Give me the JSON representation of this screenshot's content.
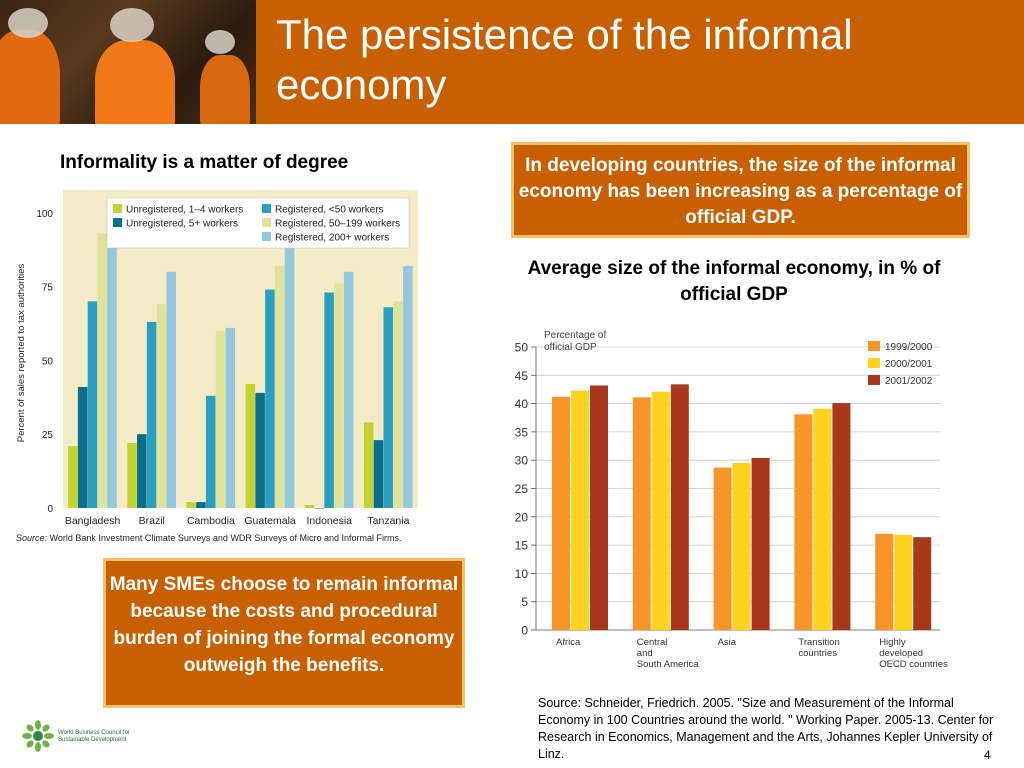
{
  "slide": {
    "title": "The persistence of the informal economy",
    "page_number": "4"
  },
  "left_panel": {
    "heading": "Informality is a matter of degree"
  },
  "top_callout": "In developing countries, the size of the informal economy has been increasing as a percentage of official GDP.",
  "bottom_callout": "Many SMEs choose to remain informal because the costs and procedural burden of joining the formal economy outweigh the benefits.",
  "right_panel": {
    "heading": "Average size of the informal economy, in % of official GDP",
    "source": "Source: Schneider, Friedrich. 2005. \"Size and Measurement of the Informal Economy in 100 Countries around the world. \" Working Paper. 2005-13. Center for Research in Economics, Management and the Arts, Johannes Kepler University of Linz."
  },
  "logo": {
    "text_line1": "World Business Council for",
    "text_line2": "Sustainable Development"
  },
  "chart_data": [
    {
      "type": "bar",
      "categories": [
        "Bangladesh",
        "Brazil",
        "Cambodia",
        "Guatemala",
        "Indonesia",
        "Tanzania"
      ],
      "series": [
        {
          "name": "Unregistered, 1–4 workers",
          "color": "#c3d432",
          "values": [
            21,
            22,
            2,
            42,
            1,
            29
          ]
        },
        {
          "name": "Unregistered, 5+ workers",
          "color": "#0b6e8c",
          "values": [
            41,
            25,
            2,
            39,
            0,
            23
          ]
        },
        {
          "name": "Registered, <50 workers",
          "color": "#2a9fbf",
          "values": [
            70,
            63,
            38,
            74,
            73,
            68
          ]
        },
        {
          "name": "Registered, 50–199 workers",
          "color": "#dfe49a",
          "values": [
            93,
            69,
            60,
            82,
            76,
            70
          ]
        },
        {
          "name": "Registered, 200+ workers",
          "color": "#93c8de",
          "values": [
            91,
            80,
            61,
            88,
            80,
            82
          ]
        }
      ],
      "ylabel": "Percent of sales reported to tax authorities",
      "yticks": [
        0,
        25,
        50,
        75,
        100
      ],
      "ylim": [
        0,
        105
      ],
      "legend": "top",
      "source_label": "Source:",
      "source_text": "World Bank Investment Climate Surveys and WDR Surveys of Micro and Informal Firms."
    },
    {
      "type": "bar",
      "categories": [
        [
          "Africa"
        ],
        [
          "Central",
          "and",
          "South America"
        ],
        [
          "Asia"
        ],
        [
          "Transition",
          "countries"
        ],
        [
          "Highly",
          "developed",
          "OECD countries"
        ]
      ],
      "series": [
        {
          "name": "1999/2000",
          "color": "#f6962a",
          "values": [
            41.2,
            41.1,
            28.7,
            38.1,
            17.0
          ]
        },
        {
          "name": "2000/2001",
          "color": "#ffd21f",
          "values": [
            42.3,
            42.1,
            29.5,
            39.1,
            16.8
          ]
        },
        {
          "name": "2001/2002",
          "color": "#a8381c",
          "values": [
            43.2,
            43.4,
            30.4,
            40.1,
            16.4
          ]
        }
      ],
      "ylabel_lines": [
        "Percentage of",
        "official GDP"
      ],
      "yticks": [
        0,
        5,
        10,
        15,
        20,
        25,
        30,
        35,
        40,
        45,
        50
      ],
      "ylim": [
        0,
        50
      ],
      "grid": true,
      "legend": "top-right"
    }
  ]
}
